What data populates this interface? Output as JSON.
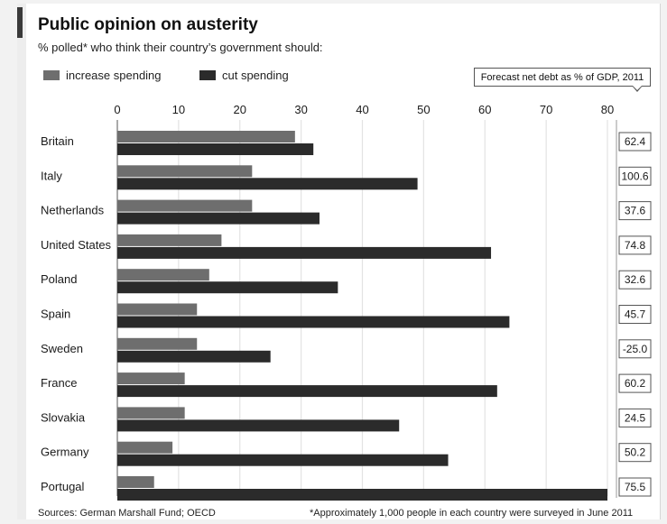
{
  "chart_data": {
    "type": "bar",
    "orientation": "horizontal",
    "title": "Public opinion on austerity",
    "subtitle": "% polled* who think their country’s government should:",
    "categories": [
      "Britain",
      "Italy",
      "Netherlands",
      "United States",
      "Poland",
      "Spain",
      "Sweden",
      "France",
      "Slovakia",
      "Germany",
      "Portugal"
    ],
    "series": [
      {
        "name": "increase spending",
        "color": "#6e6e6e",
        "values": [
          29,
          22,
          22,
          17,
          15,
          13,
          13,
          11,
          11,
          9,
          6
        ]
      },
      {
        "name": "cut spending",
        "color": "#2b2b2b",
        "values": [
          32,
          49,
          33,
          61,
          36,
          64,
          25,
          62,
          46,
          54,
          80
        ]
      }
    ],
    "xlim": [
      0,
      80
    ],
    "xticks": [
      0,
      10,
      20,
      30,
      40,
      50,
      60,
      70,
      80
    ],
    "grid": true,
    "legend_position": "top-left",
    "side_table": {
      "header": "Forecast net debt as % of GDP, 2011",
      "values": [
        "62.4",
        "100.6",
        "37.6",
        "74.8",
        "32.6",
        "45.7",
        "-25.0",
        "60.2",
        "24.5",
        "50.2",
        "75.5"
      ]
    },
    "source": "Sources: German Marshall Fund; OECD",
    "footnote": "*Approximately 1,000 people in each country were surveyed in June 2011"
  }
}
